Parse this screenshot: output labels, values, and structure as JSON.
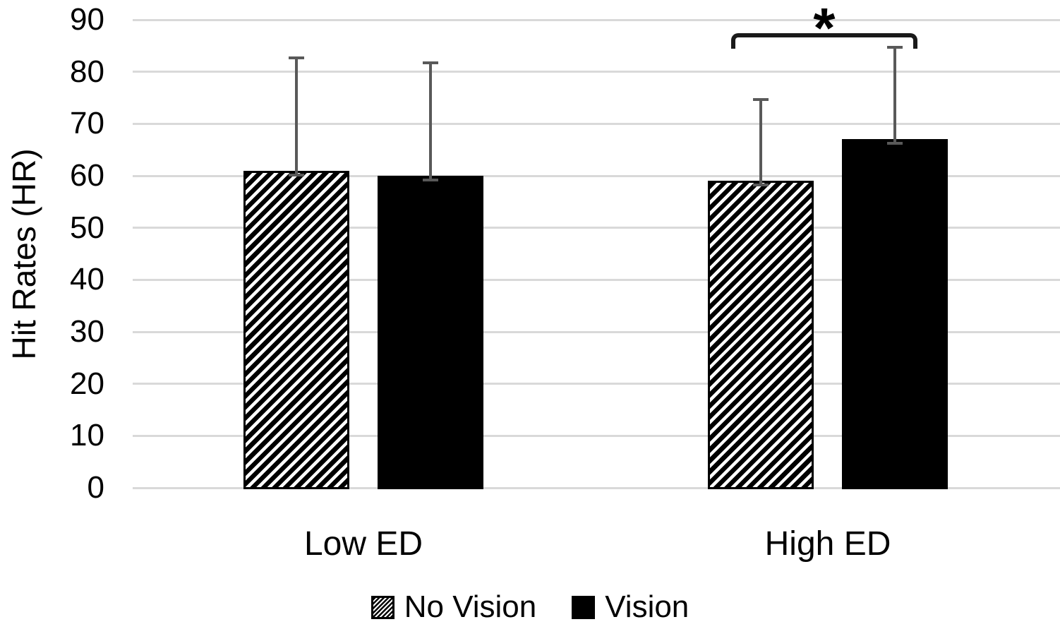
{
  "chart_data": {
    "type": "bar",
    "title": "",
    "ylabel": "Hit Rates (HR)",
    "xlabel": "",
    "ylim": [
      0,
      90
    ],
    "yticks": [
      0,
      10,
      20,
      30,
      40,
      50,
      60,
      70,
      80,
      90
    ],
    "grid": true,
    "legend_position": "bottom",
    "categories": [
      "Low ED",
      "High ED"
    ],
    "series": [
      {
        "name": "No Vision",
        "style": "diagonal-hatch",
        "values": [
          61,
          59
        ],
        "error_top": [
          83,
          75
        ]
      },
      {
        "name": "Vision",
        "style": "solid-black",
        "values": [
          60,
          67
        ],
        "error_top": [
          82,
          85
        ]
      }
    ],
    "significance": {
      "group": "High ED",
      "between": [
        "No Vision",
        "Vision"
      ],
      "label": "*"
    }
  },
  "colors": {
    "background": "#ffffff",
    "gridline": "#d9d9d9",
    "error_bar": "#595959",
    "bar_fill": "#000000",
    "bracket": "#1a1a1a",
    "text": "#000000"
  }
}
